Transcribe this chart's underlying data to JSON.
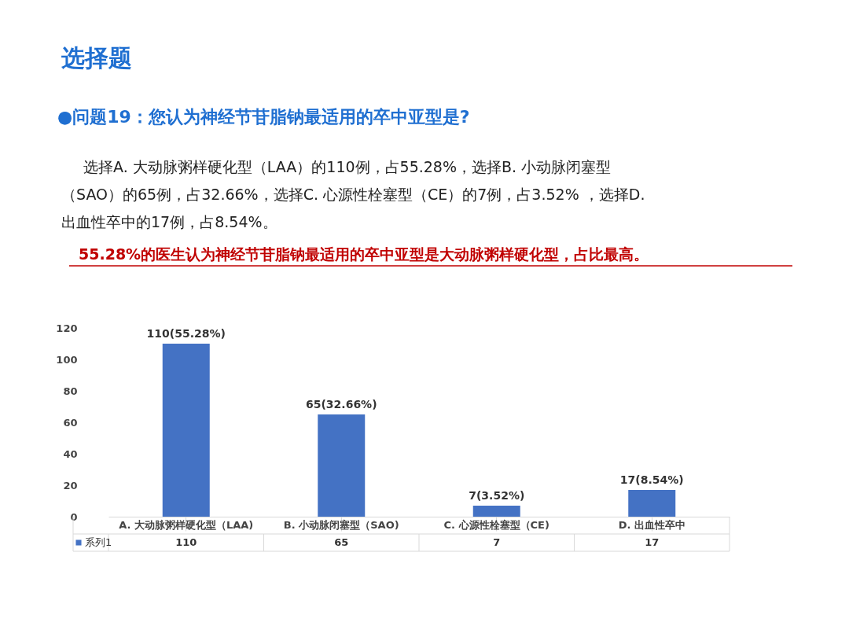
{
  "chart_data": {
    "type": "bar",
    "title": "选择题",
    "subtitle": "●问题19：您认为神经节苷脂钠最适用的卒中亚型是?",
    "annotations": [
      "选择A. 大动脉粥样硬化型（LAA）的110例，占55.28%，选择B. 小动脉闭塞型",
      "（SAO）的65例，占32.66%，选择C. 心源性栓塞型（CE）的7例，占3.52% ，选择D.",
      "出血性卒中的17例，占8.54%。",
      "55.28%的医生认为神经节苷脂钠最适用的卒中亚型是大动脉粥样硬化型，占比最高。"
    ],
    "categories": [
      "A. 大动脉粥样硬化型（LAA)",
      "B. 小动脉闭塞型（SAO)",
      "C. 心源性栓塞型（CE)",
      "D. 出血性卒中"
    ],
    "series": [
      {
        "name": "系列1",
        "color": "#4472c4",
        "values": [
          110,
          65,
          7,
          17
        ]
      }
    ],
    "value_labels": [
      "110(55.28%)",
      "65(32.66%)",
      "7(3.52%)",
      "17(8.54%)"
    ],
    "data_labels": true,
    "ylim": [
      0,
      120
    ],
    "yticks": [
      0,
      20,
      40,
      60,
      80,
      100,
      120
    ],
    "grid": false
  }
}
